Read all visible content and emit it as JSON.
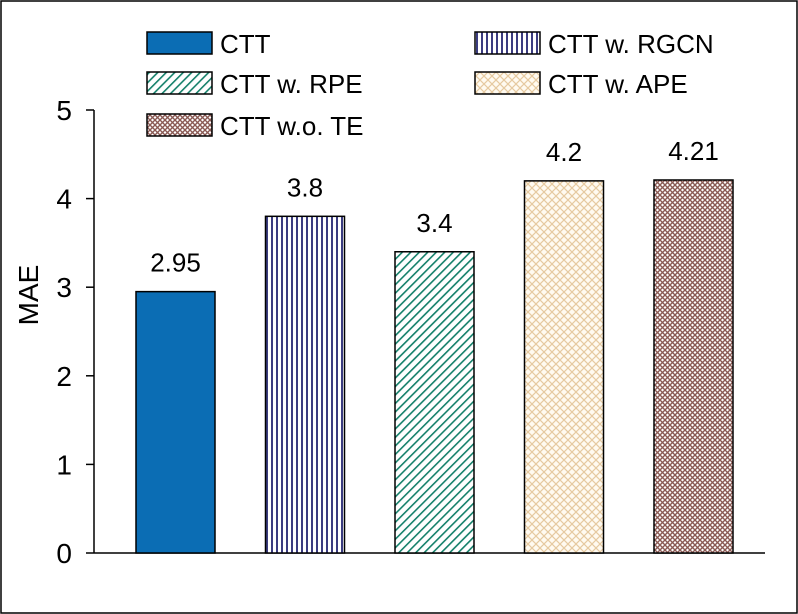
{
  "chart_data": {
    "type": "bar",
    "title": "",
    "xlabel": "",
    "ylabel": "MAE",
    "ylim": [
      0,
      5
    ],
    "yticks": [
      0,
      1,
      2,
      3,
      4,
      5
    ],
    "grid": false,
    "legend_position": "top",
    "series": [
      {
        "name": "CTT",
        "value": 2.95,
        "label": "2.95",
        "color": "#0b6db4",
        "pattern": "solid"
      },
      {
        "name": "CTT w. RGCN",
        "value": 3.8,
        "label": "3.8",
        "color": "#3b3c80",
        "pattern": "vertical-lines"
      },
      {
        "name": "CTT w. RPE",
        "value": 3.4,
        "label": "3.4",
        "color": "#14806a",
        "pattern": "diagonal-lines"
      },
      {
        "name": "CTT w. APE",
        "value": 4.2,
        "label": "4.2",
        "color": "#e6c9a0",
        "pattern": "crosshatch"
      },
      {
        "name": "CTT w.o. TE",
        "value": 4.21,
        "label": "4.21",
        "color": "#8a5a54",
        "pattern": "dense-crosshatch"
      }
    ]
  }
}
